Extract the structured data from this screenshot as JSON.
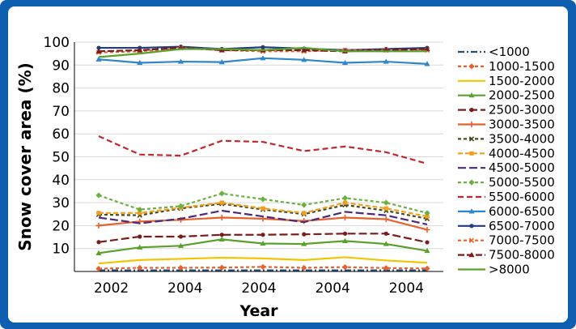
{
  "chart_data": {
    "type": "line",
    "title": "",
    "xlabel": "Year",
    "ylabel": "Snow cover area (%)",
    "ylim": [
      0,
      100
    ],
    "yticks": [
      10,
      20,
      30,
      40,
      50,
      60,
      70,
      80,
      90,
      100
    ],
    "xtick_labels": [
      "2002",
      "2004",
      "2004",
      "2004",
      "2004"
    ],
    "x_index": [
      0,
      1,
      2,
      3,
      4,
      5,
      6,
      7,
      8
    ],
    "legend_position": "right",
    "series": [
      {
        "name": "<1000",
        "color": "#1f4e79",
        "dash": "8 3 2 3",
        "marker": "none",
        "values": [
          0.5,
          0.5,
          0.5,
          0.5,
          0.5,
          0.5,
          0.5,
          0.5,
          0.5
        ]
      },
      {
        "name": "1000-1500",
        "color": "#e8602c",
        "dash": "4 3",
        "marker": "diamond",
        "values": [
          1.2,
          1.6,
          1.6,
          1.7,
          2.0,
          1.6,
          1.9,
          1.5,
          1.3
        ]
      },
      {
        "name": "1500-2000",
        "color": "#f5c400",
        "dash": "",
        "marker": "none",
        "values": [
          3.5,
          5.0,
          5.5,
          6.0,
          5.7,
          5.0,
          6.2,
          4.8,
          3.8
        ]
      },
      {
        "name": "2000-2500",
        "color": "#5aa02c",
        "dash": "",
        "marker": "triangle",
        "values": [
          8.0,
          10.5,
          11.2,
          14.0,
          12.2,
          12.0,
          13.3,
          12.0,
          9.0
        ]
      },
      {
        "name": "2500-3000",
        "color": "#7b1c1c",
        "dash": "10 4",
        "marker": "circle",
        "values": [
          12.8,
          15.2,
          15.2,
          16.0,
          16.0,
          16.2,
          16.5,
          16.5,
          12.7
        ]
      },
      {
        "name": "3000-3500",
        "color": "#e8602c",
        "dash": "",
        "marker": "plus",
        "values": [
          20.0,
          21.8,
          22.5,
          23.5,
          23.0,
          22.0,
          23.5,
          22.8,
          18.2
        ]
      },
      {
        "name": "3500-4000",
        "color": "#4a4a20",
        "dash": "4 3",
        "marker": "cross",
        "values": [
          24.8,
          24.5,
          27.5,
          29.5,
          27.0,
          25.0,
          29.0,
          26.5,
          23.0
        ]
      },
      {
        "name": "4000-4500",
        "color": "#f0a020",
        "dash": "6 3",
        "marker": "square",
        "values": [
          25.5,
          25.5,
          27.8,
          30.0,
          27.5,
          25.5,
          30.0,
          27.5,
          24.0
        ]
      },
      {
        "name": "4500-5000",
        "color": "#4b2a7a",
        "dash": "10 4",
        "marker": "none",
        "values": [
          23.5,
          21.0,
          23.0,
          26.5,
          24.0,
          21.5,
          26.0,
          24.5,
          20.5
        ]
      },
      {
        "name": "5000-5500",
        "color": "#6cb041",
        "dash": "4 3",
        "marker": "diamond",
        "values": [
          33.2,
          27.0,
          28.5,
          34.0,
          31.5,
          29.0,
          32.0,
          30.0,
          25.5
        ]
      },
      {
        "name": "5500-6000",
        "color": "#c0282d",
        "dash": "7 4",
        "marker": "none",
        "values": [
          59.0,
          51.0,
          50.5,
          57.0,
          56.5,
          52.5,
          54.5,
          52.0,
          47.0
        ]
      },
      {
        "name": "6000-6500",
        "color": "#2f86c8",
        "dash": "",
        "marker": "triangle",
        "values": [
          92.5,
          91.0,
          91.5,
          91.3,
          93.0,
          92.3,
          91.0,
          91.5,
          90.5
        ]
      },
      {
        "name": "6500-7000",
        "color": "#1f3d7a",
        "dash": "",
        "marker": "circle",
        "values": [
          97.5,
          97.5,
          98.0,
          97.0,
          97.8,
          97.2,
          96.5,
          97.0,
          97.5
        ]
      },
      {
        "name": "7000-7500",
        "color": "#e8602c",
        "dash": "4 3",
        "marker": "cross",
        "values": [
          95.5,
          96.0,
          97.5,
          96.5,
          96.0,
          96.0,
          96.5,
          96.5,
          96.5
        ]
      },
      {
        "name": "7500-8000",
        "color": "#7b1c1c",
        "dash": "8 3",
        "marker": "triangle",
        "values": [
          96.0,
          96.5,
          97.5,
          96.5,
          96.5,
          96.5,
          96.0,
          96.5,
          97.0
        ]
      },
      {
        "name": ">8000",
        "color": "#5aa02c",
        "dash": "",
        "marker": "none",
        "values": [
          93.5,
          95.0,
          97.0,
          97.0,
          96.5,
          97.5,
          96.0,
          96.0,
          96.0
        ]
      }
    ]
  }
}
